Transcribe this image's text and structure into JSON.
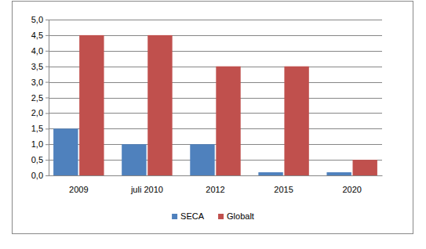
{
  "chart_data": {
    "type": "bar",
    "categories": [
      "2009",
      "juli 2010",
      "2012",
      "2015",
      "2020"
    ],
    "series": [
      {
        "name": "SECA",
        "color": "#4f81bd",
        "values": [
          1.5,
          1.0,
          1.0,
          0.1,
          0.1
        ]
      },
      {
        "name": "Globalt",
        "color": "#c0504d",
        "values": [
          4.5,
          4.5,
          3.5,
          3.5,
          0.5
        ]
      }
    ],
    "ylim": [
      0,
      5
    ],
    "yticks": [
      {
        "value": 0,
        "label": "0,0"
      },
      {
        "value": 0.5,
        "label": "0,5"
      },
      {
        "value": 1,
        "label": "1,0"
      },
      {
        "value": 1.5,
        "label": "1,5"
      },
      {
        "value": 2,
        "label": "2,0"
      },
      {
        "value": 2.5,
        "label": "2,5"
      },
      {
        "value": 3,
        "label": "3,0"
      },
      {
        "value": 3.5,
        "label": "3,5"
      },
      {
        "value": 4,
        "label": "4,0"
      },
      {
        "value": 4.5,
        "label": "4,5"
      },
      {
        "value": 5,
        "label": "5,0"
      }
    ],
    "grid": true,
    "legend": "bottom"
  }
}
